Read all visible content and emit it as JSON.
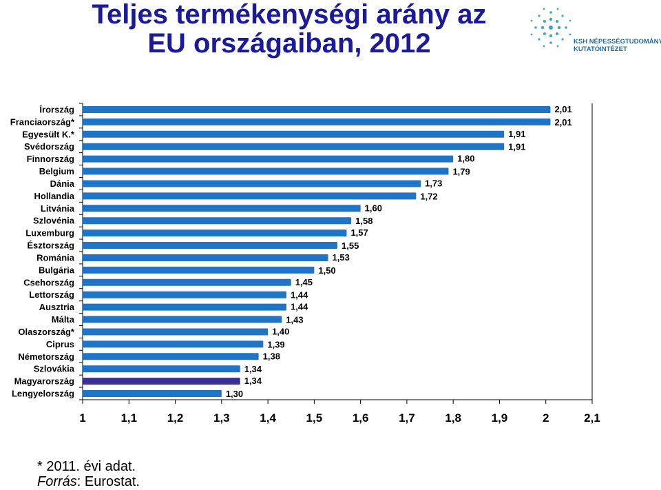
{
  "title_line1": "Teljes termékenységi arány az",
  "title_line2": "EU országaiban, 2012",
  "logo": {
    "line1": "KSH NÉPESSÉGTUDOMÁNYI",
    "line2": "KUTATÓINTÉZET"
  },
  "footnote": "* 2011. évi adat.",
  "source_label": "Forrás",
  "source_value": ": Eurostat.",
  "colors": {
    "bar": "#1f74c6",
    "highlight": "#3a2f94",
    "title": "#1a1a9a"
  },
  "chart_data": {
    "type": "bar",
    "orientation": "horizontal",
    "categories": [
      "Írország",
      "Franciaország*",
      "Egyesült K.*",
      "Svédország",
      "Finnország",
      "Belgium",
      "Dánia",
      "Hollandia",
      "Litvánia",
      "Szlovénia",
      "Luxemburg",
      "Észtország",
      "Románia",
      "Bulgária",
      "Csehország",
      "Lettország",
      "Ausztria",
      "Málta",
      "Olaszország*",
      "Ciprus",
      "Németország",
      "Szlovákia",
      "Magyarország",
      "Lengyelország"
    ],
    "values": [
      2.01,
      2.01,
      1.91,
      1.91,
      1.8,
      1.79,
      1.73,
      1.72,
      1.6,
      1.58,
      1.57,
      1.55,
      1.53,
      1.5,
      1.45,
      1.44,
      1.44,
      1.43,
      1.4,
      1.39,
      1.38,
      1.34,
      1.34,
      1.3
    ],
    "value_labels": [
      "2,01",
      "2,01",
      "1,91",
      "1,91",
      "1,80",
      "1,79",
      "1,73",
      "1,72",
      "1,60",
      "1,58",
      "1,57",
      "1,55",
      "1,53",
      "1,50",
      "1,45",
      "1,44",
      "1,44",
      "1,43",
      "1,40",
      "1,39",
      "1,38",
      "1,34",
      "1,34",
      "1,30"
    ],
    "highlight": "Magyarország",
    "xlim": [
      1,
      2.1
    ],
    "xticks": [
      1,
      1.1,
      1.2,
      1.3,
      1.4,
      1.5,
      1.6,
      1.7,
      1.8,
      1.9,
      2,
      2.1
    ],
    "xtick_labels": [
      "1",
      "1,1",
      "1,2",
      "1,3",
      "1,4",
      "1,5",
      "1,6",
      "1,7",
      "1,8",
      "1,9",
      "2",
      "2,1"
    ],
    "grid": false,
    "legend": "none"
  }
}
